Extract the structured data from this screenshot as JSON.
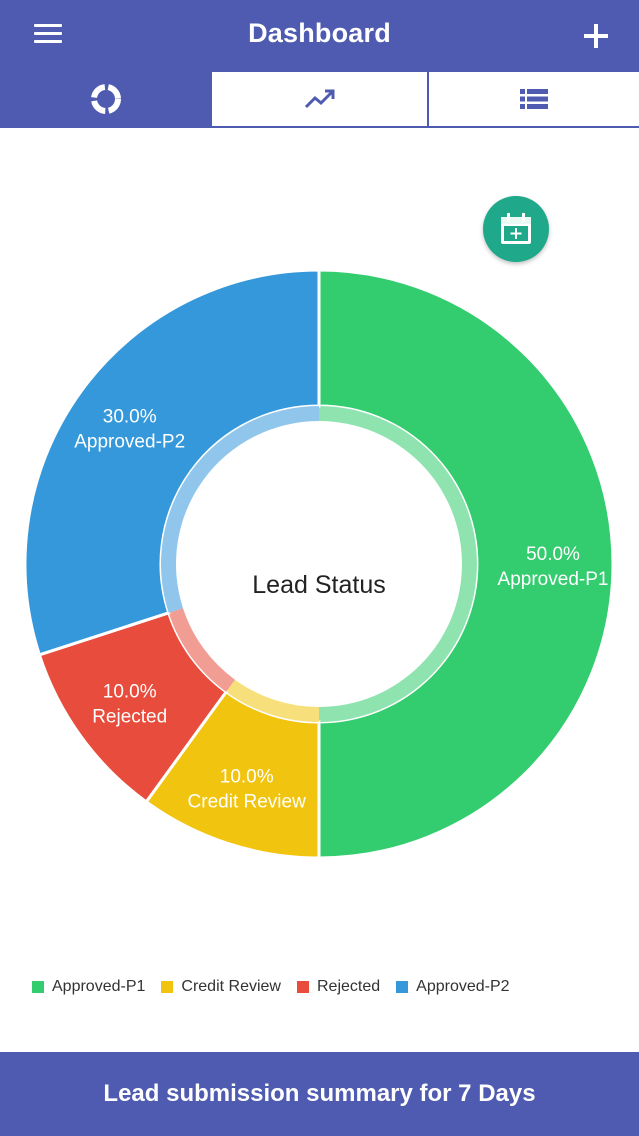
{
  "header": {
    "title": "Dashboard",
    "menu_icon": "menu-icon",
    "add_icon": "plus-icon"
  },
  "tabs": [
    {
      "icon": "donut-chart-icon",
      "selected": true
    },
    {
      "icon": "trending-line-icon",
      "selected": false
    },
    {
      "icon": "list-icon",
      "selected": false
    }
  ],
  "calendar_button": {
    "icon": "calendar-add-icon",
    "color": "#1fa88a"
  },
  "chart_data": {
    "type": "pie",
    "title": "Lead Status",
    "categories": [
      "Approved-P1",
      "Credit Review",
      "Rejected",
      "Approved-P2"
    ],
    "values": [
      50.0,
      10.0,
      10.0,
      30.0
    ],
    "labels": [
      "50.0%",
      "10.0%",
      "10.0%",
      "30.0%"
    ],
    "colors": [
      "#33cc6e",
      "#f1c40f",
      "#e74c3c",
      "#3498db"
    ],
    "legend_position": "bottom-left",
    "donut": true
  },
  "footer": {
    "label": "Lead submission summary for 7 Days"
  },
  "colors": {
    "primary": "#4f5bb0",
    "accent": "#1fa88a"
  }
}
